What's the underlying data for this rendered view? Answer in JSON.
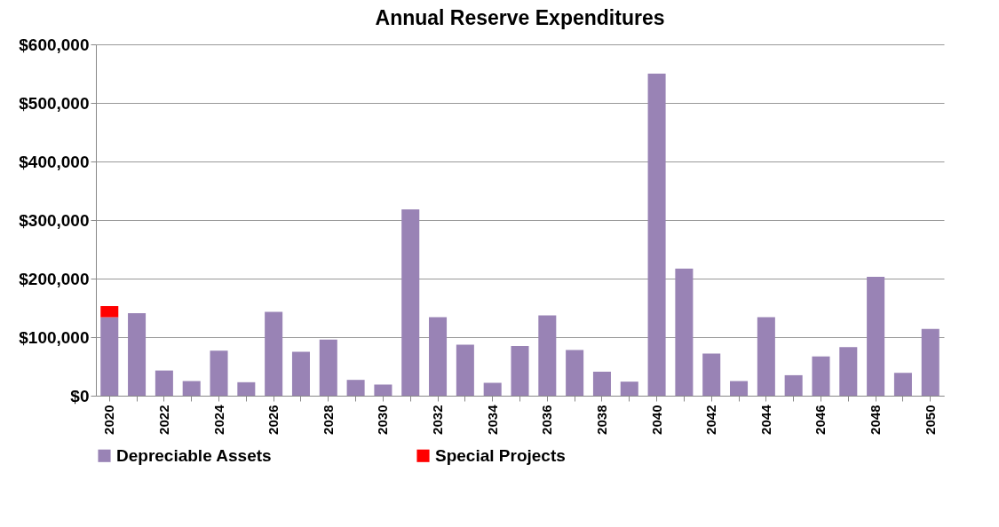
{
  "chart_data": {
    "type": "bar",
    "title": "Annual  Reserve Expenditures",
    "stacked": true,
    "categories": [
      "2020",
      null,
      "2022",
      null,
      "2024",
      null,
      "2026",
      null,
      "2028",
      null,
      "2030",
      null,
      "2032",
      null,
      "2034",
      null,
      "2036",
      null,
      "2038",
      null,
      "2040",
      null,
      "2042",
      null,
      "2044",
      null,
      "2046",
      null,
      "2048",
      null,
      "2050"
    ],
    "series": [
      {
        "name": "Depreciable Assets",
        "color": "#9983b5",
        "values": [
          134000,
          141000,
          43000,
          25000,
          77000,
          23000,
          143000,
          75000,
          96000,
          27000,
          19000,
          318000,
          134000,
          87000,
          22000,
          85000,
          137000,
          78000,
          41000,
          24000,
          550000,
          217000,
          72000,
          25000,
          134000,
          35000,
          67000,
          83000,
          203000,
          39000,
          114000
        ]
      },
      {
        "name": "Special Projects",
        "color": "#ff0000",
        "values": [
          19000,
          null,
          null,
          null,
          null,
          null,
          null,
          null,
          null,
          null,
          null,
          null,
          null,
          null,
          null,
          null,
          null,
          null,
          null,
          null,
          null,
          null,
          null,
          null,
          null,
          null,
          null,
          null,
          null,
          null,
          null
        ]
      }
    ],
    "ylim": [
      0,
      600000
    ],
    "yticks": [
      {
        "value": 0,
        "label": "$0"
      },
      {
        "value": 100000,
        "label": "$100,000"
      },
      {
        "value": 200000,
        "label": "$200,000"
      },
      {
        "value": 300000,
        "label": "$300,000"
      },
      {
        "value": 400000,
        "label": "$400,000"
      },
      {
        "value": 500000,
        "label": "$500,000"
      },
      {
        "value": 600000,
        "label": "$600,000"
      }
    ],
    "grid": "y",
    "legend": "bottom"
  }
}
